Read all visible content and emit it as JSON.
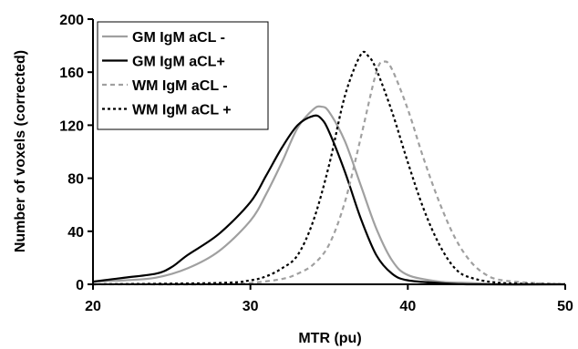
{
  "chart_data": {
    "type": "line",
    "xlabel": "MTR (pu)",
    "ylabel": "Number of voxels (corrected)",
    "xlim": [
      20,
      50
    ],
    "ylim": [
      0,
      200
    ],
    "x_ticks": [
      20,
      30,
      40,
      50
    ],
    "y_ticks": [
      0,
      40,
      80,
      120,
      160,
      200
    ],
    "x_tick_labels": [
      "20",
      "30",
      "40",
      "50"
    ],
    "y_tick_labels": [
      "0",
      "40",
      "80",
      "120",
      "160",
      "200"
    ],
    "grid": false,
    "legend_position": "top-left",
    "series": [
      {
        "name": "GM IgM aCL -",
        "color": "#a0a0a0",
        "dash": "solid",
        "x": [
          20,
          22,
          24,
          26,
          28,
          30,
          31,
          32,
          33,
          34,
          34.5,
          35,
          36,
          37,
          38,
          39,
          40,
          42,
          44,
          46,
          50
        ],
        "y": [
          2,
          3,
          5,
          12,
          25,
          48,
          68,
          92,
          118,
          132,
          134,
          130,
          108,
          75,
          42,
          18,
          7,
          2,
          1,
          0,
          0
        ]
      },
      {
        "name": "GM IgM aCL+",
        "color": "#000000",
        "dash": "solid",
        "x": [
          20,
          22,
          24,
          25,
          26,
          28,
          30,
          31,
          32,
          33,
          34,
          34.5,
          35,
          36,
          37,
          38,
          39,
          40,
          42,
          44,
          50
        ],
        "y": [
          2,
          5,
          8,
          13,
          22,
          38,
          62,
          82,
          103,
          120,
          127,
          125,
          115,
          85,
          50,
          22,
          8,
          3,
          1,
          0,
          0
        ]
      },
      {
        "name": "WM IgM aCL -",
        "color": "#a0a0a0",
        "dash": "dashed",
        "x": [
          20,
          28,
          30,
          32,
          33,
          34,
          35,
          36,
          37,
          38,
          38.5,
          39,
          40,
          41,
          42,
          43,
          44,
          45,
          46,
          48,
          50
        ],
        "y": [
          0,
          0,
          1,
          4,
          8,
          15,
          30,
          62,
          110,
          160,
          168,
          162,
          132,
          95,
          62,
          35,
          17,
          7,
          3,
          1,
          0
        ]
      },
      {
        "name": "WM IgM aCL +",
        "color": "#000000",
        "dash": "dotted",
        "x": [
          20,
          28,
          30,
          31,
          32,
          33,
          34,
          35,
          36,
          37,
          37.5,
          38,
          39,
          40,
          41,
          42,
          43,
          44,
          46,
          50
        ],
        "y": [
          0,
          1,
          3,
          6,
          12,
          22,
          48,
          90,
          142,
          173,
          172,
          162,
          130,
          92,
          57,
          30,
          12,
          5,
          1,
          0
        ]
      }
    ]
  }
}
